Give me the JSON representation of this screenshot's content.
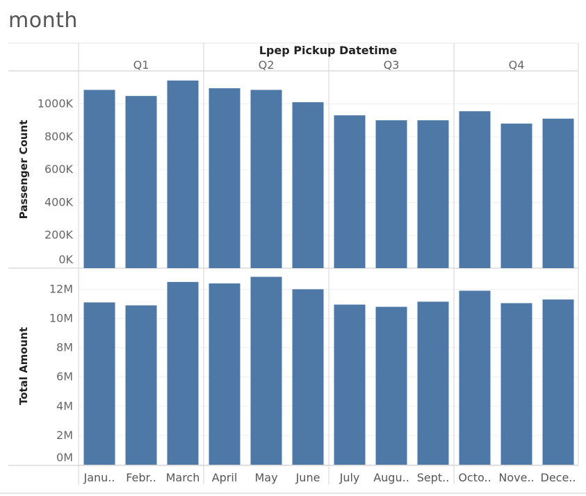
{
  "page_title": "month",
  "chart_data": {
    "type": "bar",
    "column_header": "Lpep Pickup Datetime",
    "quarters": [
      "Q1",
      "Q2",
      "Q3",
      "Q4"
    ],
    "categories": [
      "Janu..",
      "Febr..",
      "March",
      "April",
      "May",
      "June",
      "July",
      "Augu..",
      "Sept..",
      "Octo..",
      "Nove..",
      "Dece.."
    ],
    "series": [
      {
        "name": "Passenger Count",
        "values": [
          1085000,
          1048000,
          1142000,
          1095000,
          1085000,
          1010000,
          930000,
          900000,
          900000,
          955000,
          880000,
          910000
        ],
        "ylim": [
          0,
          1100000
        ],
        "ticks": [
          0,
          200000,
          400000,
          600000,
          800000,
          1000000
        ],
        "tick_labels": [
          "0K",
          "200K",
          "400K",
          "600K",
          "800K",
          "1000K"
        ]
      },
      {
        "name": "Total Amount",
        "values": [
          11100000,
          10900000,
          12500000,
          12400000,
          12850000,
          12000000,
          10950000,
          10800000,
          11150000,
          11900000,
          11050000,
          11300000
        ],
        "ylim": [
          0,
          13000000
        ],
        "ticks": [
          0,
          2000000,
          4000000,
          6000000,
          8000000,
          10000000,
          12000000
        ],
        "tick_labels": [
          "0M",
          "2M",
          "4M",
          "6M",
          "8M",
          "10M",
          "12M"
        ]
      }
    ],
    "bar_color": "#4e79a7",
    "gridlines": true
  }
}
